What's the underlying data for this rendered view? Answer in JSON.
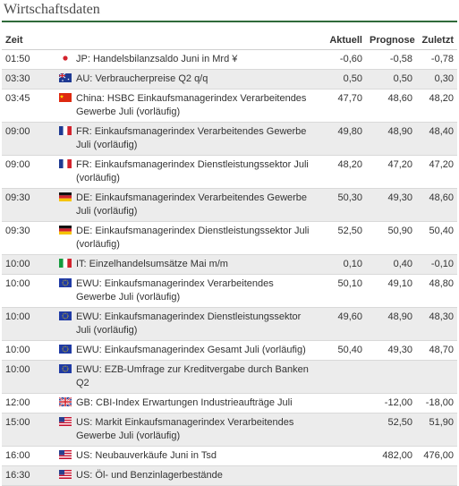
{
  "title": "Wirtschaftsdaten",
  "columns": {
    "time": "Zeit",
    "actual": "Aktuell",
    "forecast": "Prognose",
    "previous": "Zuletzt"
  },
  "rows": [
    {
      "time": "01:50",
      "flag": "jp-flag-icon",
      "event": "JP: Handelsbilanzsaldo Juni in Mrd ¥",
      "actual": "-0,60",
      "forecast": "-0,58",
      "previous": "-0,78"
    },
    {
      "time": "03:30",
      "flag": "au-flag-icon",
      "event": "AU: Verbraucherpreise Q2 q/q",
      "actual": "0,50",
      "forecast": "0,50",
      "previous": "0,30"
    },
    {
      "time": "03:45",
      "flag": "cn-flag-icon",
      "event": "China: HSBC Einkaufsmanagerindex Verarbeitendes Gewerbe Juli (vorläufig)",
      "actual": "47,70",
      "forecast": "48,60",
      "previous": "48,20"
    },
    {
      "time": "09:00",
      "flag": "fr-flag-icon",
      "event": "FR: Einkaufsmanagerindex Verarbeitendes Gewerbe Juli (vorläufig)",
      "actual": "49,80",
      "forecast": "48,90",
      "previous": "48,40"
    },
    {
      "time": "09:00",
      "flag": "fr-flag-icon",
      "event": "FR: Einkaufsmanagerindex Dienstleistungssektor Juli (vorläufig)",
      "actual": "48,20",
      "forecast": "47,20",
      "previous": "47,20"
    },
    {
      "time": "09:30",
      "flag": "de-flag-icon",
      "event": "DE: Einkaufsmanagerindex Verarbeitendes Gewerbe Juli (vorläufig)",
      "actual": "50,30",
      "forecast": "49,30",
      "previous": "48,60"
    },
    {
      "time": "09:30",
      "flag": "de-flag-icon",
      "event": "DE: Einkaufsmanagerindex Dienstleistungssektor Juli (vorläufig)",
      "actual": "52,50",
      "forecast": "50,90",
      "previous": "50,40"
    },
    {
      "time": "10:00",
      "flag": "it-flag-icon",
      "event": "IT: Einzelhandelsumsätze Mai m/m",
      "actual": "0,10",
      "forecast": "0,40",
      "previous": "-0,10"
    },
    {
      "time": "10:00",
      "flag": "eu-flag-icon",
      "event": "EWU: Einkaufsmanagerindex Verarbeitendes Gewerbe Juli (vorläufig)",
      "actual": "50,10",
      "forecast": "49,10",
      "previous": "48,80"
    },
    {
      "time": "10:00",
      "flag": "eu-flag-icon",
      "event": "EWU: Einkaufsmanagerindex Dienstleistungssektor Juli (vorläufig)",
      "actual": "49,60",
      "forecast": "48,90",
      "previous": "48,30"
    },
    {
      "time": "10:00",
      "flag": "eu-flag-icon",
      "event": "EWU: Einkaufsmanagerindex Gesamt Juli (vorläufig)",
      "actual": "50,40",
      "forecast": "49,30",
      "previous": "48,70"
    },
    {
      "time": "10:00",
      "flag": "eu-flag-icon",
      "event": "EWU: EZB-Umfrage zur Kreditvergabe durch Banken Q2",
      "actual": "",
      "forecast": "",
      "previous": ""
    },
    {
      "time": "12:00",
      "flag": "gb-flag-icon",
      "event": "GB: CBI-Index Erwartungen Industrieaufträge Juli",
      "actual": "",
      "forecast": "-12,00",
      "previous": "-18,00"
    },
    {
      "time": "15:00",
      "flag": "us-flag-icon",
      "event": "US: Markit Einkaufsmanagerindex Verarbeitendes Gewerbe Juli (vorläufig)",
      "actual": "",
      "forecast": "52,50",
      "previous": "51,90"
    },
    {
      "time": "16:00",
      "flag": "us-flag-icon",
      "event": "US: Neubauverkäufe Juni in Tsd",
      "actual": "",
      "forecast": "482,00",
      "previous": "476,00"
    },
    {
      "time": "16:30",
      "flag": "us-flag-icon",
      "event": "US: Öl- und Benzinlagerbestände",
      "actual": "",
      "forecast": "",
      "previous": ""
    }
  ]
}
